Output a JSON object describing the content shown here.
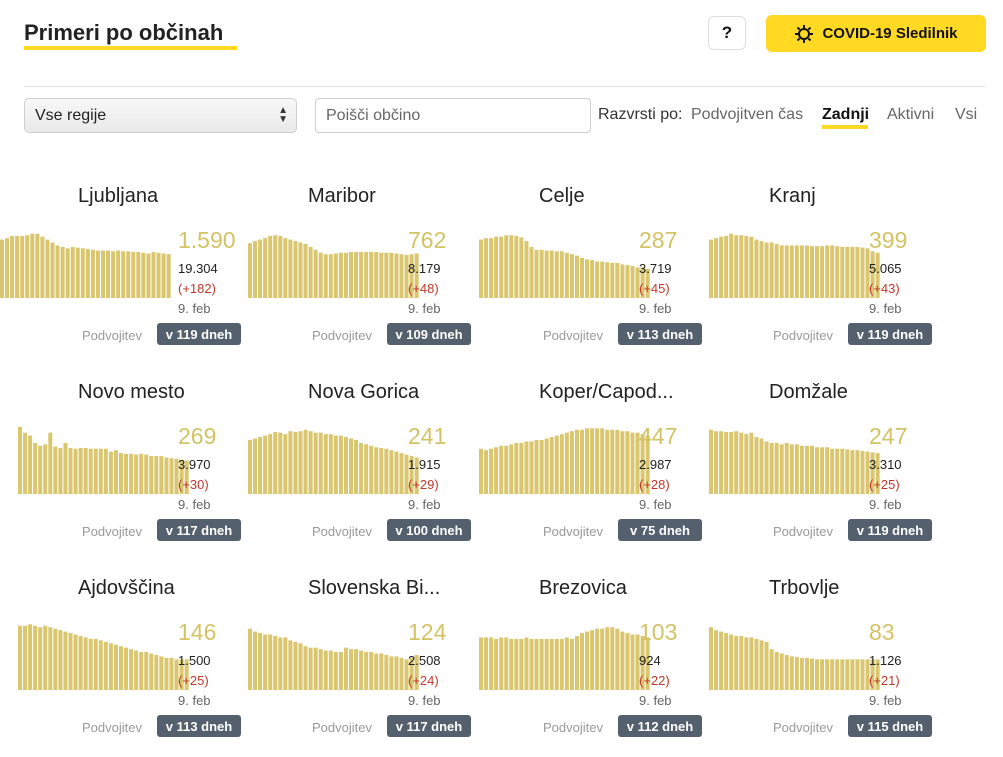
{
  "header": {
    "title": "Primeri po občinah",
    "help_label": "?",
    "brand_label": "COVID-19 Sledilnik"
  },
  "filters": {
    "region_selected": "Vse regije",
    "search_placeholder": "Poišči občino",
    "sort_label": "Razvrsti po:",
    "sort_options": [
      "Podvojitven čas",
      "Zadnji",
      "Aktivni",
      "Vsi"
    ],
    "sort_active": "Zadnji"
  },
  "colors": {
    "accent": "#ffd922",
    "bar": "#d9c66f",
    "badge": "#55606e",
    "change": "#c0392b"
  },
  "municipalities": [
    {
      "name": "Ljubljana",
      "total": "1.590",
      "cumulative": "19.304",
      "change": "(+182)",
      "date": "9. feb",
      "doubling_label": "Podvojitev",
      "doubling_value": "v 119 dneh",
      "bars": [
        0.8,
        0.82,
        0.85,
        0.85,
        0.85,
        0.86,
        0.88,
        0.88,
        0.84,
        0.8,
        0.76,
        0.72,
        0.7,
        0.68,
        0.7,
        0.69,
        0.68,
        0.67,
        0.66,
        0.65,
        0.65,
        0.65,
        0.64,
        0.65,
        0.64,
        0.64,
        0.63,
        0.63,
        0.62,
        0.61,
        0.63,
        0.62,
        0.61,
        0.6
      ]
    },
    {
      "name": "Maribor",
      "total": "762",
      "cumulative": "8.179",
      "change": "(+48)",
      "date": "9. feb",
      "doubling_label": "Podvojitev",
      "doubling_value": "v 109 dneh",
      "bars": [
        0.75,
        0.78,
        0.8,
        0.82,
        0.85,
        0.86,
        0.85,
        0.82,
        0.8,
        0.78,
        0.76,
        0.74,
        0.7,
        0.66,
        0.62,
        0.6,
        0.6,
        0.61,
        0.62,
        0.62,
        0.63,
        0.63,
        0.63,
        0.63,
        0.63,
        0.63,
        0.62,
        0.62,
        0.62,
        0.61,
        0.6,
        0.59,
        0.6,
        0.61
      ]
    },
    {
      "name": "Celje",
      "total": "287",
      "cumulative": "3.719",
      "change": "(+45)",
      "date": "9. feb",
      "doubling_label": "Podvojitev",
      "doubling_value": "v 113 dneh",
      "bars": [
        0.8,
        0.82,
        0.82,
        0.84,
        0.84,
        0.86,
        0.86,
        0.85,
        0.83,
        0.78,
        0.7,
        0.66,
        0.66,
        0.65,
        0.65,
        0.64,
        0.64,
        0.62,
        0.6,
        0.58,
        0.55,
        0.53,
        0.52,
        0.5,
        0.5,
        0.49,
        0.48,
        0.48,
        0.46,
        0.45,
        0.44,
        0.42,
        0.42,
        0.4
      ]
    },
    {
      "name": "Kranj",
      "total": "399",
      "cumulative": "5.065",
      "change": "(+43)",
      "date": "9. feb",
      "doubling_label": "Podvojitev",
      "doubling_value": "v 119 dneh",
      "bars": [
        0.8,
        0.82,
        0.84,
        0.85,
        0.88,
        0.86,
        0.86,
        0.85,
        0.84,
        0.8,
        0.78,
        0.76,
        0.76,
        0.74,
        0.72,
        0.72,
        0.72,
        0.72,
        0.72,
        0.72,
        0.71,
        0.71,
        0.71,
        0.72,
        0.72,
        0.71,
        0.7,
        0.7,
        0.7,
        0.7,
        0.69,
        0.68,
        0.64,
        0.62
      ]
    },
    {
      "name": "Novo mesto",
      "total": "269",
      "cumulative": "3.970",
      "change": "(+30)",
      "date": "9. feb",
      "doubling_label": "Podvojitev",
      "doubling_value": "v 117 dneh",
      "bars": [
        0.92,
        0.84,
        0.8,
        0.7,
        0.66,
        0.68,
        0.84,
        0.65,
        0.63,
        0.7,
        0.63,
        0.62,
        0.63,
        0.63,
        0.62,
        0.62,
        0.62,
        0.62,
        0.58,
        0.6,
        0.56,
        0.55,
        0.55,
        0.54,
        0.55,
        0.54,
        0.52,
        0.52,
        0.52,
        0.5,
        0.49,
        0.48,
        0.47,
        0.46
      ]
    },
    {
      "name": "Nova Gorica",
      "total": "241",
      "cumulative": "1.915",
      "change": "(+29)",
      "date": "9. feb",
      "doubling_label": "Podvojitev",
      "doubling_value": "v 100 dneh",
      "bars": [
        0.74,
        0.76,
        0.78,
        0.8,
        0.82,
        0.85,
        0.84,
        0.82,
        0.86,
        0.85,
        0.86,
        0.88,
        0.86,
        0.84,
        0.84,
        0.82,
        0.82,
        0.8,
        0.8,
        0.78,
        0.76,
        0.74,
        0.7,
        0.68,
        0.66,
        0.64,
        0.63,
        0.62,
        0.6,
        0.58,
        0.56,
        0.54,
        0.52,
        0.5
      ]
    },
    {
      "name": "Koper/Capod...",
      "total": "447",
      "cumulative": "2.987",
      "change": "(+28)",
      "date": "9. feb",
      "doubling_label": "Podvojitev",
      "doubling_value": "v 75 dneh",
      "bars": [
        0.62,
        0.6,
        0.62,
        0.64,
        0.66,
        0.66,
        0.68,
        0.7,
        0.7,
        0.72,
        0.72,
        0.74,
        0.74,
        0.76,
        0.78,
        0.8,
        0.82,
        0.84,
        0.86,
        0.88,
        0.88,
        0.9,
        0.9,
        0.9,
        0.9,
        0.88,
        0.88,
        0.88,
        0.86,
        0.86,
        0.84,
        0.84,
        0.82,
        0.8
      ]
    },
    {
      "name": "Domžale",
      "total": "247",
      "cumulative": "3.310",
      "change": "(+25)",
      "date": "9. feb",
      "doubling_label": "Podvojitev",
      "doubling_value": "v 119 dneh",
      "bars": [
        0.88,
        0.86,
        0.86,
        0.85,
        0.85,
        0.86,
        0.84,
        0.82,
        0.84,
        0.78,
        0.76,
        0.72,
        0.7,
        0.7,
        0.68,
        0.7,
        0.68,
        0.68,
        0.66,
        0.66,
        0.66,
        0.64,
        0.64,
        0.64,
        0.62,
        0.62,
        0.62,
        0.61,
        0.6,
        0.6,
        0.59,
        0.58,
        0.57,
        0.56
      ]
    },
    {
      "name": "Ajdovščina",
      "total": "146",
      "cumulative": "1.500",
      "change": "(+25)",
      "date": "9. feb",
      "doubling_label": "Podvojitev",
      "doubling_value": "v 113 dneh",
      "bars": [
        0.88,
        0.88,
        0.9,
        0.88,
        0.86,
        0.88,
        0.86,
        0.84,
        0.82,
        0.8,
        0.78,
        0.76,
        0.74,
        0.72,
        0.7,
        0.7,
        0.68,
        0.66,
        0.64,
        0.62,
        0.6,
        0.58,
        0.56,
        0.54,
        0.52,
        0.52,
        0.5,
        0.48,
        0.46,
        0.44,
        0.44,
        0.42,
        0.42,
        0.42
      ]
    },
    {
      "name": "Slovenska Bi...",
      "total": "124",
      "cumulative": "2.508",
      "change": "(+24)",
      "date": "9. feb",
      "doubling_label": "Podvojitev",
      "doubling_value": "v 117 dneh",
      "bars": [
        0.84,
        0.8,
        0.78,
        0.76,
        0.76,
        0.74,
        0.72,
        0.72,
        0.68,
        0.66,
        0.64,
        0.6,
        0.58,
        0.58,
        0.56,
        0.54,
        0.54,
        0.52,
        0.52,
        0.58,
        0.56,
        0.56,
        0.54,
        0.52,
        0.52,
        0.5,
        0.5,
        0.48,
        0.46,
        0.46,
        0.44,
        0.42,
        0.44,
        0.48
      ]
    },
    {
      "name": "Brezovica",
      "total": "103",
      "cumulative": "924",
      "change": "(+22)",
      "date": "9. feb",
      "doubling_label": "Podvojitev",
      "doubling_value": "v 112 dneh",
      "bars": [
        0.72,
        0.72,
        0.72,
        0.7,
        0.72,
        0.72,
        0.7,
        0.7,
        0.7,
        0.72,
        0.7,
        0.7,
        0.7,
        0.7,
        0.7,
        0.7,
        0.7,
        0.72,
        0.7,
        0.74,
        0.78,
        0.8,
        0.82,
        0.84,
        0.84,
        0.86,
        0.86,
        0.84,
        0.8,
        0.78,
        0.76,
        0.76,
        0.74,
        0.72
      ]
    },
    {
      "name": "Trbovlje",
      "total": "83",
      "cumulative": "1.126",
      "change": "(+21)",
      "date": "9. feb",
      "doubling_label": "Podvojitev",
      "doubling_value": "v 115 dneh",
      "bars": [
        0.86,
        0.82,
        0.8,
        0.78,
        0.76,
        0.74,
        0.74,
        0.72,
        0.72,
        0.7,
        0.68,
        0.66,
        0.56,
        0.52,
        0.5,
        0.48,
        0.46,
        0.45,
        0.44,
        0.44,
        0.43,
        0.42,
        0.42,
        0.42,
        0.42,
        0.42,
        0.42,
        0.42,
        0.42,
        0.42,
        0.42,
        0.42,
        0.42,
        0.42
      ]
    }
  ]
}
